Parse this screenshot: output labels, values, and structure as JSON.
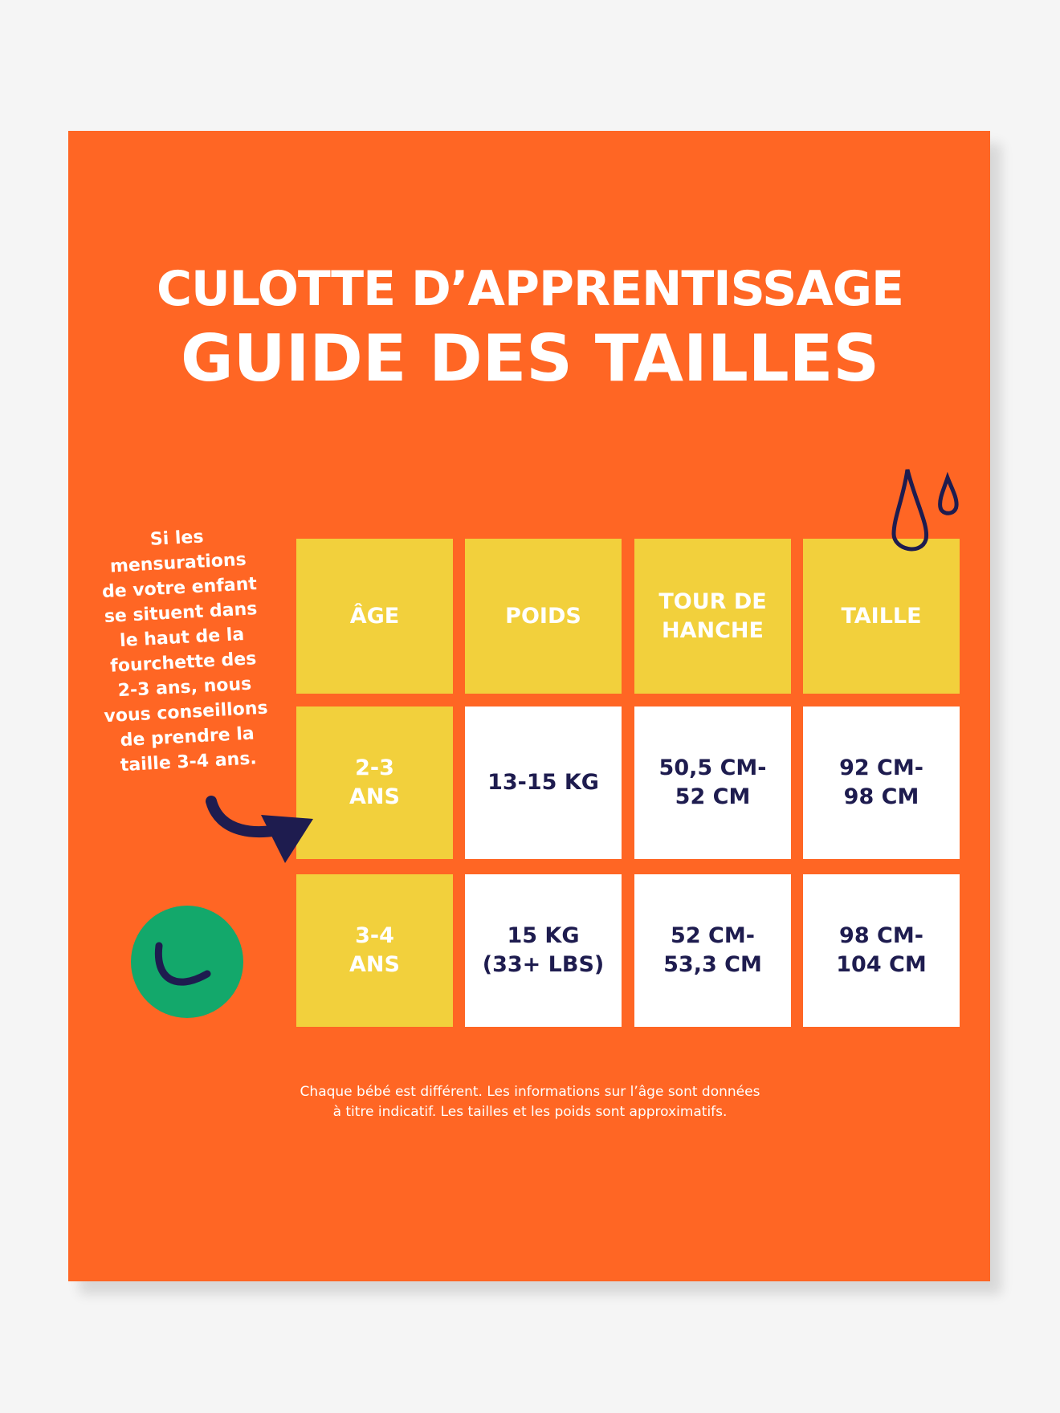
{
  "title_line1": "CULOTTE D’APPRENTISSAGE",
  "title_line2": "GUIDE DES TAILLES",
  "side_note": "Si les\nmensurations\nde votre enfant\nse situent dans\nle haut de la\nfourchette des\n2-3 ans, nous\nvous conseillons\nde prendre la\ntaille 3-4 ans.",
  "table": {
    "headers": [
      "ÂGE",
      "POIDS",
      "TOUR DE\nHANCHE",
      "TAILLE"
    ],
    "rows": [
      [
        "2-3\nANS",
        "13-15 KG",
        "50,5 CM-\n52 CM",
        "92 CM-\n98 CM"
      ],
      [
        "3-4\nANS",
        "15 KG\n(33+ LBS)",
        "52 CM-\n53,3 CM",
        "98 CM-\n104 CM"
      ]
    ]
  },
  "footer": "Chaque bébé est différent. Les informations sur l’âge sont données\nà titre indicatif. Les tailles et les poids sont approximatifs.",
  "colors": {
    "orange": "#ff6624",
    "yellow": "#f2d03c",
    "navy": "#1e1c4f",
    "green": "#13a86b"
  },
  "icons": [
    "water-drops-icon",
    "curved-arrow-icon",
    "smiley-circle-icon"
  ]
}
